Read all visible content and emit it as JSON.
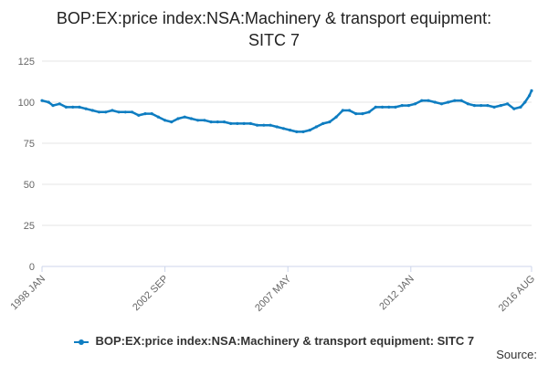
{
  "title_line1": "BOP:EX:price index:NSA:Machinery & transport equipment:",
  "title_line2": "SITC 7",
  "source_label": "Source:",
  "colors": {
    "series": "#0e7dc1",
    "grid": "#e6e6e6",
    "axis": "#ccd6eb",
    "text": "#666666"
  },
  "chart_data": {
    "type": "line",
    "title": "BOP:EX:price index:NSA:Machinery & transport equipment: SITC 7",
    "xlabel": "",
    "ylabel": "",
    "ylim": [
      0,
      125
    ],
    "yticks": [
      0,
      25,
      50,
      75,
      100,
      125
    ],
    "xtick_labels": [
      "1998 JAN",
      "2002 SEP",
      "2007 MAY",
      "2012 JAN",
      "2016 AUG"
    ],
    "x_start": "1998 JAN",
    "x_end": "2016 AUG",
    "grid": true,
    "legend_position": "bottom",
    "series": [
      {
        "name": "BOP:EX:price index:NSA:Machinery & transport equipment: SITC 7",
        "points": [
          [
            "1998-01",
            101
          ],
          [
            "1998-04",
            100
          ],
          [
            "1998-06",
            98
          ],
          [
            "1998-09",
            99
          ],
          [
            "1998-12",
            97
          ],
          [
            "1999-03",
            97
          ],
          [
            "1999-06",
            97
          ],
          [
            "1999-09",
            96
          ],
          [
            "1999-12",
            95
          ],
          [
            "2000-03",
            94
          ],
          [
            "2000-06",
            94
          ],
          [
            "2000-09",
            95
          ],
          [
            "2000-12",
            94
          ],
          [
            "2001-03",
            94
          ],
          [
            "2001-06",
            94
          ],
          [
            "2001-09",
            92
          ],
          [
            "2001-12",
            93
          ],
          [
            "2002-03",
            93
          ],
          [
            "2002-06",
            91
          ],
          [
            "2002-09",
            89
          ],
          [
            "2002-12",
            88
          ],
          [
            "2003-03",
            90
          ],
          [
            "2003-06",
            91
          ],
          [
            "2003-09",
            90
          ],
          [
            "2003-12",
            89
          ],
          [
            "2004-03",
            89
          ],
          [
            "2004-06",
            88
          ],
          [
            "2004-09",
            88
          ],
          [
            "2004-12",
            88
          ],
          [
            "2005-03",
            87
          ],
          [
            "2005-06",
            87
          ],
          [
            "2005-09",
            87
          ],
          [
            "2005-12",
            87
          ],
          [
            "2006-03",
            86
          ],
          [
            "2006-06",
            86
          ],
          [
            "2006-09",
            86
          ],
          [
            "2006-12",
            85
          ],
          [
            "2007-03",
            84
          ],
          [
            "2007-06",
            83
          ],
          [
            "2007-09",
            82
          ],
          [
            "2007-12",
            82
          ],
          [
            "2008-03",
            83
          ],
          [
            "2008-06",
            85
          ],
          [
            "2008-09",
            87
          ],
          [
            "2008-12",
            88
          ],
          [
            "2009-03",
            91
          ],
          [
            "2009-06",
            95
          ],
          [
            "2009-09",
            95
          ],
          [
            "2009-12",
            93
          ],
          [
            "2010-03",
            93
          ],
          [
            "2010-06",
            94
          ],
          [
            "2010-09",
            97
          ],
          [
            "2010-12",
            97
          ],
          [
            "2011-03",
            97
          ],
          [
            "2011-06",
            97
          ],
          [
            "2011-09",
            98
          ],
          [
            "2011-12",
            98
          ],
          [
            "2012-03",
            99
          ],
          [
            "2012-06",
            101
          ],
          [
            "2012-09",
            101
          ],
          [
            "2012-12",
            100
          ],
          [
            "2013-03",
            99
          ],
          [
            "2013-06",
            100
          ],
          [
            "2013-09",
            101
          ],
          [
            "2013-12",
            101
          ],
          [
            "2014-03",
            99
          ],
          [
            "2014-06",
            98
          ],
          [
            "2014-09",
            98
          ],
          [
            "2014-12",
            98
          ],
          [
            "2015-03",
            97
          ],
          [
            "2015-06",
            98
          ],
          [
            "2015-09",
            99
          ],
          [
            "2015-12",
            96
          ],
          [
            "2016-03",
            97
          ],
          [
            "2016-05",
            100
          ],
          [
            "2016-07",
            104
          ],
          [
            "2016-08",
            107
          ]
        ]
      }
    ]
  }
}
